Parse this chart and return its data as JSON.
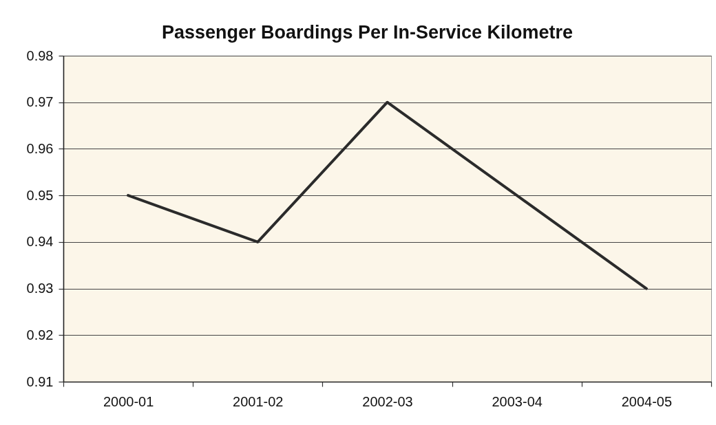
{
  "chart_data": {
    "type": "line",
    "title": "Passenger Boardings Per In-Service Kilometre",
    "categories": [
      "2000-01",
      "2001-02",
      "2002-03",
      "2003-04",
      "2004-05"
    ],
    "series": [
      {
        "color": "#2b2b2b",
        "values": [
          0.95,
          0.94,
          0.97,
          0.95,
          0.93
        ]
      }
    ],
    "ylim": [
      0.91,
      0.98
    ],
    "yticks": [
      0.91,
      0.92,
      0.93,
      0.94,
      0.95,
      0.96,
      0.97,
      0.98
    ],
    "grid": "y"
  }
}
